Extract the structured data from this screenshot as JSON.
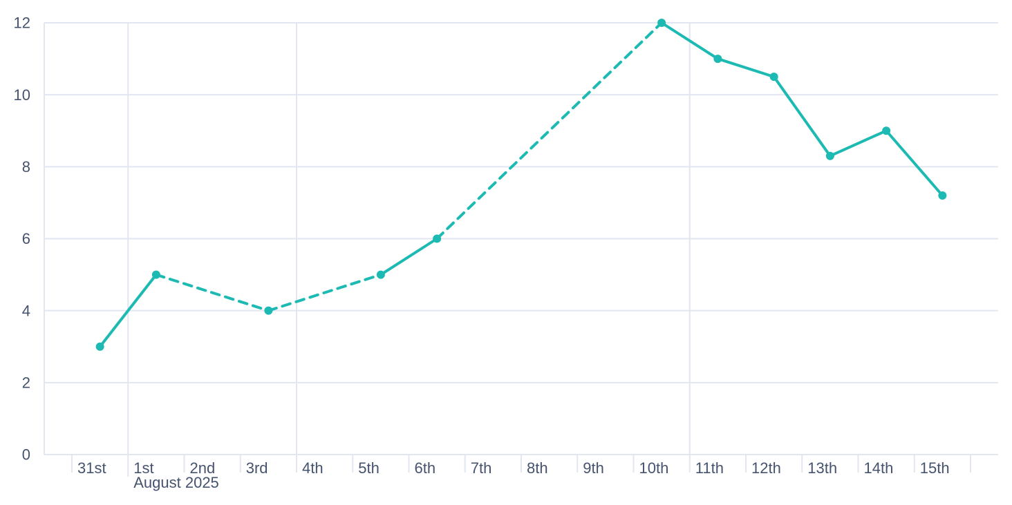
{
  "page": {
    "background_color": "#ffffff"
  },
  "chart_data": {
    "type": "line",
    "title": "",
    "legend": "none",
    "grid": "on",
    "x_axis": {
      "unit": "day",
      "categories": [
        "31st",
        "1st",
        "2nd",
        "3rd",
        "4th",
        "5th",
        "6th",
        "7th",
        "8th",
        "9th",
        "10th",
        "11th",
        "12th",
        "13th",
        "14th",
        "15th"
      ],
      "secondary_label": "August 2025",
      "secondary_label_anchor": "1st",
      "major_gridlines_at": [
        "1st",
        "4th",
        "11th"
      ]
    },
    "y_axis": {
      "min": 0,
      "max": 12,
      "tick_values": [
        0,
        2,
        4,
        6,
        8,
        10,
        12
      ],
      "tick_labels": [
        "0",
        "2",
        "4",
        "6",
        "8",
        "10",
        "12"
      ]
    },
    "series": [
      {
        "name": "daily-values",
        "color": "#1cbab2",
        "line_width": 4,
        "marker_radius": 6,
        "gap_segments_dashed": true,
        "points": [
          {
            "x": "31st",
            "y": 3
          },
          {
            "x": "1st",
            "y": 5
          },
          {
            "x": "3rd",
            "y": 4
          },
          {
            "x": "5th",
            "y": 5
          },
          {
            "x": "6th",
            "y": 6
          },
          {
            "x": "10th",
            "y": 12
          },
          {
            "x": "11th",
            "y": 11
          },
          {
            "x": "12th",
            "y": 10.5
          },
          {
            "x": "13th",
            "y": 8.3
          },
          {
            "x": "14th",
            "y": 9
          },
          {
            "x": "15th",
            "y": 7.2
          }
        ]
      }
    ],
    "missing_days": [
      "2nd",
      "4th",
      "7th",
      "8th",
      "9th"
    ],
    "colors": {
      "line": "#1cbab2",
      "grid": "#e2e6f1",
      "tick_label": "#46536e",
      "background": "#ffffff"
    }
  }
}
